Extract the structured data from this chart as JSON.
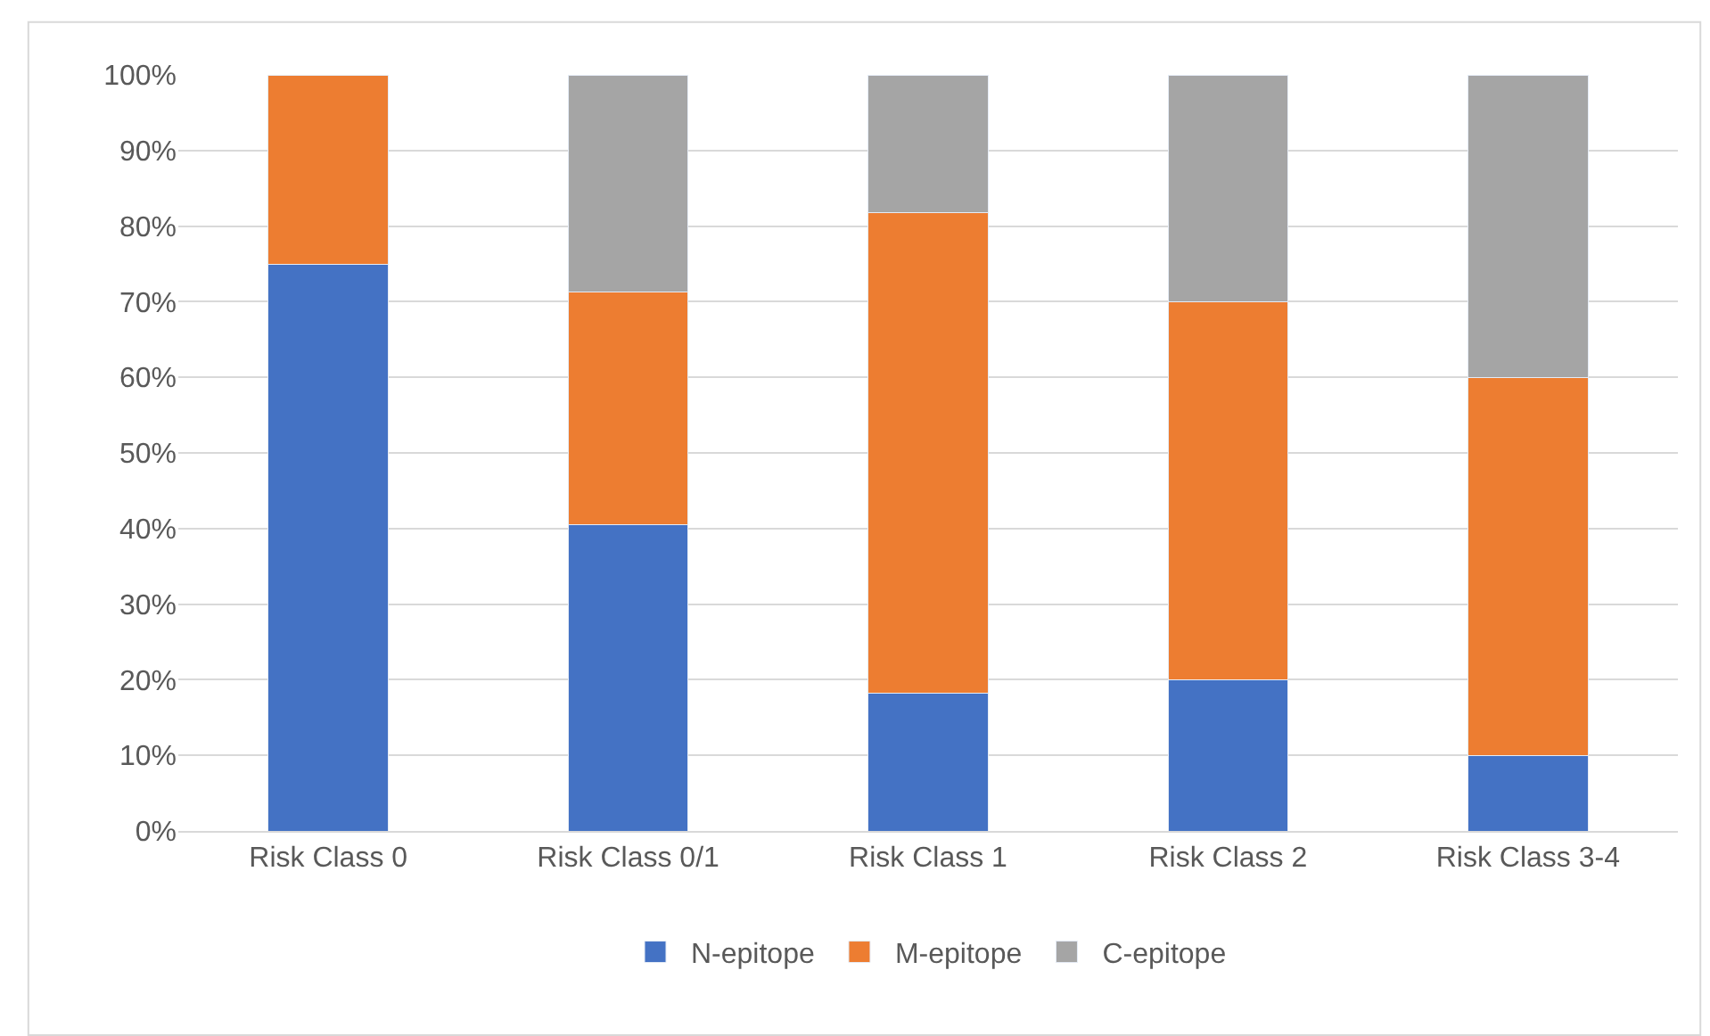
{
  "chart_data": {
    "type": "bar",
    "stacked": true,
    "categories": [
      "Risk Class 0",
      "Risk Class 0/1",
      "Risk Class 1",
      "Risk Class 2",
      "Risk Class 3-4"
    ],
    "series": [
      {
        "name": "N-epitope",
        "color": "#4472c4",
        "values": [
          75,
          40.5,
          18.2,
          20,
          10
        ]
      },
      {
        "name": "M-epitope",
        "color": "#ed7d31",
        "values": [
          25,
          30.8,
          63.6,
          50,
          50
        ]
      },
      {
        "name": "C-epitope",
        "color": "#a5a5a5",
        "values": [
          null,
          28.7,
          18.2,
          30,
          40
        ]
      }
    ],
    "ylim": [
      0,
      100
    ],
    "yticks": [
      {
        "value": 0,
        "label": "0%"
      },
      {
        "value": 10,
        "label": "10%"
      },
      {
        "value": 20,
        "label": "20%"
      },
      {
        "value": 30,
        "label": "30%"
      },
      {
        "value": 40,
        "label": "40%"
      },
      {
        "value": 50,
        "label": "50%"
      },
      {
        "value": 60,
        "label": "60%"
      },
      {
        "value": 70,
        "label": "70%"
      },
      {
        "value": 80,
        "label": "80%"
      },
      {
        "value": 90,
        "label": "90%"
      },
      {
        "value": 100,
        "label": "100%"
      }
    ],
    "grid": "y",
    "legend": "bottom"
  }
}
